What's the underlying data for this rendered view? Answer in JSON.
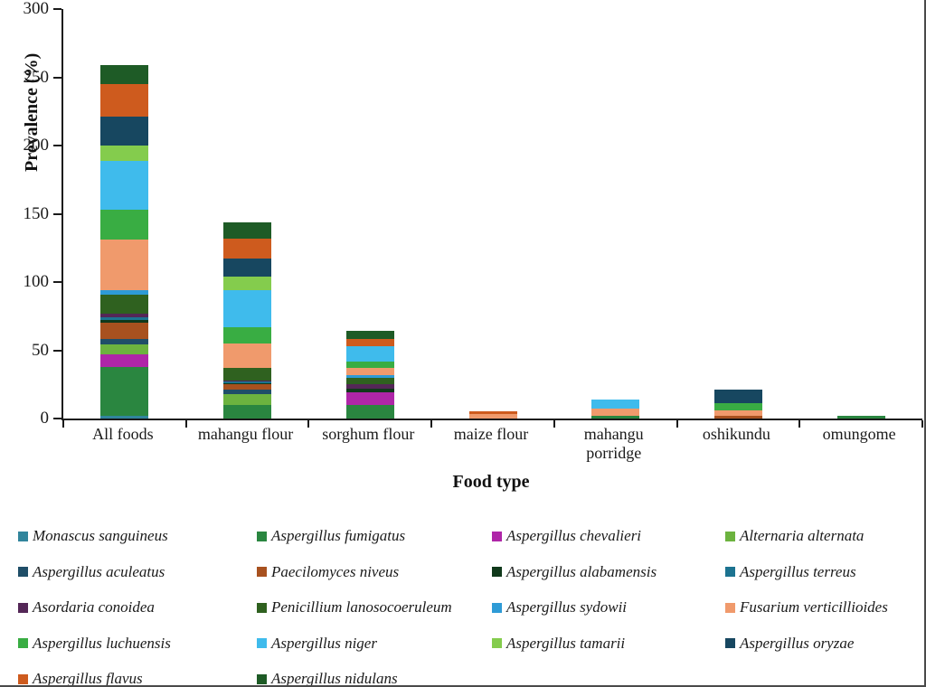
{
  "figure": {
    "y_axis_label": "Prevalence (%)",
    "x_axis_label": "Food type"
  },
  "chart_data": {
    "type": "bar",
    "subtype": "stacked-vertical",
    "title": "",
    "ylabel": "Prevalence (%)",
    "xlabel": "Food type",
    "ylim": [
      0,
      300
    ],
    "yticks": [
      0,
      50,
      100,
      150,
      200,
      250,
      300
    ],
    "grid": false,
    "legend_position": "bottom-4-columns",
    "axis_color": "#1a1a1a",
    "categories": [
      "All foods",
      "mahangu flour",
      "sorghum flour",
      "maize flour",
      "mahangu porridge",
      "oshikundu",
      "omungome"
    ],
    "category_label_lines": [
      [
        "All foods"
      ],
      [
        "mahangu flour"
      ],
      [
        "sorghum flour"
      ],
      [
        "maize flour"
      ],
      [
        "mahangu",
        "porridge"
      ],
      [
        "oshikundu"
      ],
      [
        "omungome"
      ]
    ],
    "stack_order_note": "series listed bottom-of-stack first; values per category in same order as categories",
    "series": [
      {
        "name": "Monascus sanguineus",
        "color": "#31859C",
        "values": [
          2,
          0,
          0,
          0,
          0,
          0,
          0
        ]
      },
      {
        "name": "Aspergillus fumigatus",
        "color": "#2A8640",
        "values": [
          36,
          10,
          10,
          0,
          2,
          0,
          2
        ]
      },
      {
        "name": "Aspergillus chevalieri",
        "color": "#AF26A8",
        "values": [
          9,
          0,
          9,
          0,
          0,
          0,
          0
        ]
      },
      {
        "name": "Alternaria alternata",
        "color": "#6CB33F",
        "values": [
          7,
          8,
          0,
          0,
          0,
          0,
          0
        ]
      },
      {
        "name": "Aspergillus aculeatus",
        "color": "#1F4E68",
        "values": [
          4,
          3,
          0,
          0,
          0,
          0,
          0
        ]
      },
      {
        "name": "Paecilomyces niveus",
        "color": "#A8511F",
        "values": [
          12,
          4,
          0,
          0,
          0,
          2,
          0
        ]
      },
      {
        "name": "Aspergillus alabamensis",
        "color": "#10391B",
        "values": [
          2,
          1,
          3,
          0,
          0,
          0,
          0
        ]
      },
      {
        "name": "Aspergillus terreus",
        "color": "#1C7390",
        "values": [
          2,
          1,
          0,
          0,
          0,
          0,
          0
        ]
      },
      {
        "name": "Asordaria conoidea",
        "color": "#542757",
        "values": [
          3,
          1,
          3,
          0,
          0,
          0,
          0
        ]
      },
      {
        "name": "Penicillium lanosocoeruleum",
        "color": "#2F611F",
        "values": [
          14,
          9,
          5,
          0,
          0,
          0,
          0
        ]
      },
      {
        "name": "Aspergillus sydowii",
        "color": "#2E9BD6",
        "values": [
          3,
          0,
          2,
          0,
          0,
          0,
          0
        ]
      },
      {
        "name": "Fusarium verticillioides",
        "color": "#F09A6C",
        "values": [
          37,
          18,
          5,
          3,
          5,
          4,
          0
        ]
      },
      {
        "name": "Aspergillus luchuensis",
        "color": "#39AD43",
        "values": [
          22,
          12,
          5,
          0,
          0,
          5,
          0
        ]
      },
      {
        "name": "Aspergillus niger",
        "color": "#3FBBEC",
        "values": [
          36,
          27,
          11,
          0,
          7,
          0,
          0
        ]
      },
      {
        "name": "Aspergillus tamarii",
        "color": "#84CC4D",
        "values": [
          11,
          10,
          0,
          0,
          0,
          0,
          0
        ]
      },
      {
        "name": "Aspergillus oryzae",
        "color": "#174760",
        "values": [
          21,
          13,
          0,
          0,
          0,
          10,
          0
        ]
      },
      {
        "name": "Aspergillus flavus",
        "color": "#CE5B1E",
        "values": [
          24,
          15,
          5,
          2,
          0,
          0,
          0
        ]
      },
      {
        "name": "Aspergillus nidulans",
        "color": "#1E5B26",
        "values": [
          14,
          12,
          6,
          0,
          0,
          0,
          0
        ]
      }
    ],
    "category_totals": [
      259,
      144,
      64,
      5,
      14,
      21,
      2
    ]
  }
}
